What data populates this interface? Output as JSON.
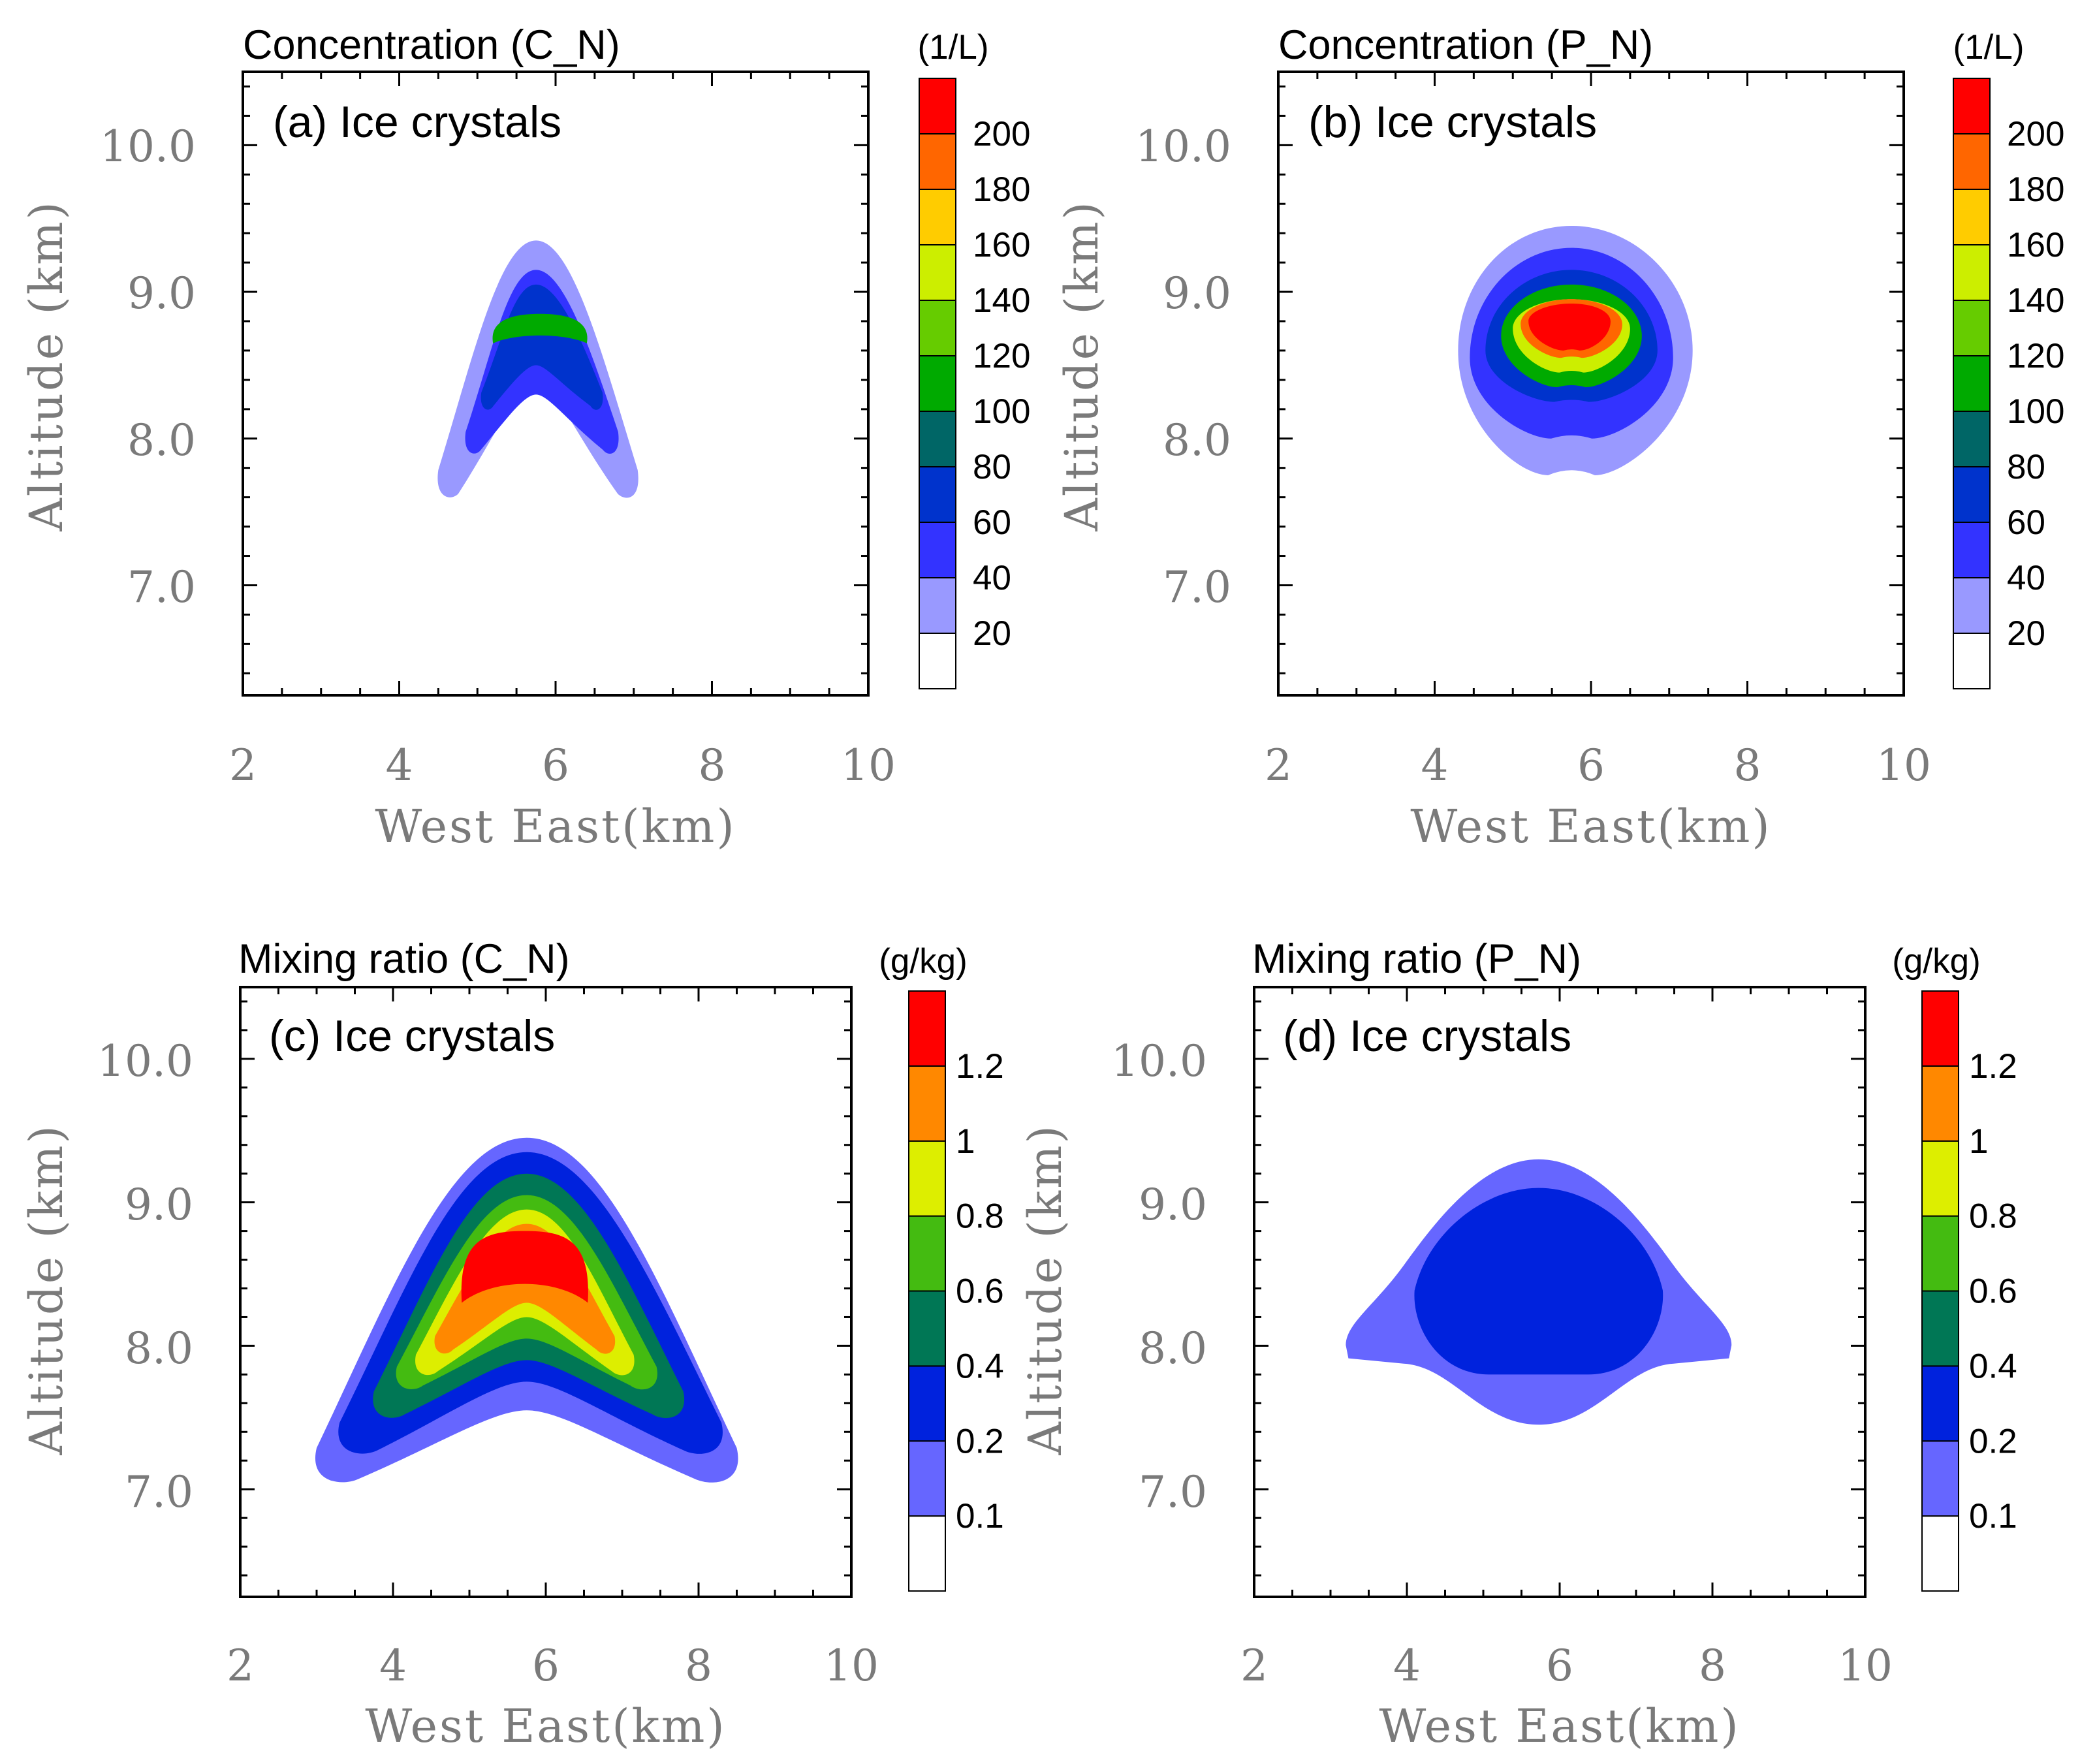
{
  "palettes": {
    "concentration": [
      "#ffffff",
      "#9999ff",
      "#3333ff",
      "#0033cc",
      "#006666",
      "#00aa00",
      "#66cc00",
      "#ccee00",
      "#ffcc00",
      "#ff6600",
      "#ff0000"
    ],
    "mixing": [
      "#ffffff",
      "#6666ff",
      "#0022dd",
      "#007755",
      "#44bb11",
      "#ddee00",
      "#ff8800",
      "#ff0000"
    ]
  },
  "chart_data": [
    {
      "type": "contour",
      "panel": "a",
      "title": "Concentration (C_N)",
      "panel_label": "(a) Ice crystals",
      "units_label": "(1/L)",
      "xlabel": "West East(km)",
      "ylabel": "Altitude (km)",
      "xlim": [
        2,
        10
      ],
      "ylim": [
        6.25,
        10.5
      ],
      "x_ticks": [
        "2",
        "4",
        "6",
        "8",
        "10"
      ],
      "y_ticks": [
        "7.0",
        "8.0",
        "9.0",
        "10.0"
      ],
      "colorbar_levels": [
        "20",
        "40",
        "60",
        "80",
        "100",
        "120",
        "140",
        "160",
        "180",
        "200"
      ],
      "contours": [
        {
          "level": 20,
          "peak": [
            5.75,
            9.35
          ],
          "left": [
            4.5,
            7.65
          ],
          "right": [
            7.05,
            7.65
          ],
          "valley": 8.4
        },
        {
          "level": 40,
          "peak": [
            5.75,
            9.15
          ],
          "left": [
            4.85,
            7.95
          ],
          "right": [
            6.8,
            7.95
          ],
          "valley": 8.3
        },
        {
          "level": 60,
          "peak": [
            5.75,
            9.05
          ],
          "left": [
            5.05,
            8.25
          ],
          "right": [
            6.6,
            8.25
          ],
          "valley": 8.5
        },
        {
          "level": 100,
          "box": [
            5.2,
            6.4,
            8.65,
            8.85
          ]
        }
      ]
    },
    {
      "type": "contour",
      "panel": "b",
      "title": "Concentration (P_N)",
      "panel_label": "(b) Ice crystals",
      "units_label": "(1/L)",
      "xlabel": "West East(km)",
      "ylabel": "Altitude (km)",
      "xlim": [
        2,
        10
      ],
      "ylim": [
        6.25,
        10.5
      ],
      "x_ticks": [
        "2",
        "4",
        "6",
        "8",
        "10"
      ],
      "y_ticks": [
        "7.0",
        "8.0",
        "9.0",
        "10.0"
      ],
      "colorbar_levels": [
        "20",
        "40",
        "60",
        "80",
        "100",
        "120",
        "140",
        "160",
        "180",
        "200"
      ],
      "contours": [
        {
          "level": 20,
          "center": [
            5.75,
            8.6
          ],
          "x_extent": [
            4.3,
            7.3
          ],
          "y_extent": [
            7.75,
            9.45
          ]
        },
        {
          "level": 40,
          "center": [
            5.75,
            8.55
          ],
          "x_extent": [
            4.45,
            7.05
          ],
          "y_extent": [
            8.0,
            9.3
          ]
        },
        {
          "level": 60,
          "center": [
            5.75,
            8.6
          ],
          "x_extent": [
            4.65,
            6.85
          ],
          "y_extent": [
            8.25,
            9.15
          ]
        },
        {
          "level": 100,
          "center": [
            5.75,
            8.7
          ],
          "x_extent": [
            4.85,
            6.65
          ],
          "y_extent": [
            8.35,
            9.05
          ]
        },
        {
          "level": 140,
          "center": [
            5.75,
            8.75
          ],
          "x_extent": [
            5.0,
            6.5
          ],
          "y_extent": [
            8.45,
            8.95
          ]
        },
        {
          "level": 180,
          "center": [
            5.75,
            8.78
          ],
          "x_extent": [
            5.1,
            6.4
          ],
          "y_extent": [
            8.55,
            8.95
          ]
        },
        {
          "level": 200,
          "center": [
            5.75,
            8.8
          ],
          "x_extent": [
            5.2,
            6.25
          ],
          "y_extent": [
            8.6,
            8.92
          ]
        }
      ]
    },
    {
      "type": "contour",
      "panel": "c",
      "title": "Mixing ratio (C_N)",
      "panel_label": "(c) Ice crystals",
      "units_label": "(g/kg)",
      "xlabel": "West East(km)",
      "ylabel": "Altitude (km)",
      "xlim": [
        2,
        10
      ],
      "ylim": [
        6.25,
        10.5
      ],
      "x_ticks": [
        "2",
        "4",
        "6",
        "8",
        "10"
      ],
      "y_ticks": [
        "7.0",
        "8.0",
        "9.0",
        "10.0"
      ],
      "colorbar_levels": [
        "0.1",
        "0.2",
        "0.4",
        "0.6",
        "0.8",
        "1",
        "1.2"
      ],
      "contours": [
        {
          "level": 0.1,
          "peak": [
            5.75,
            9.45
          ],
          "left": [
            3.0,
            7.1
          ],
          "right": [
            8.5,
            7.1
          ],
          "valley": 7.55
        },
        {
          "level": 0.2,
          "peak": [
            5.75,
            9.35
          ],
          "left": [
            3.3,
            7.3
          ],
          "right": [
            8.3,
            7.3
          ],
          "valley": 7.75
        },
        {
          "level": 0.4,
          "peak": [
            5.75,
            9.2
          ],
          "left": [
            3.75,
            7.55
          ],
          "right": [
            7.8,
            7.55
          ],
          "valley": 7.9
        },
        {
          "level": 0.6,
          "peak": [
            5.75,
            9.05
          ],
          "left": [
            4.05,
            7.75
          ],
          "right": [
            7.45,
            7.75
          ],
          "valley": 8.05
        },
        {
          "level": 0.8,
          "peak": [
            5.75,
            8.95
          ],
          "left": [
            4.3,
            7.85
          ],
          "right": [
            7.15,
            7.85
          ],
          "valley": 8.2
        },
        {
          "level": 1.0,
          "peak": [
            5.75,
            8.85
          ],
          "left": [
            4.55,
            8.0
          ],
          "right": [
            6.9,
            8.0
          ],
          "valley": 8.3
        },
        {
          "level": 1.2,
          "box": [
            4.9,
            6.55,
            8.3,
            8.8
          ]
        }
      ]
    },
    {
      "type": "contour",
      "panel": "d",
      "title": "Mixing ratio (P_N)",
      "panel_label": "(d) Ice crystals",
      "units_label": "(g/kg)",
      "xlabel": "West East(km)",
      "ylabel": "Altitude (km)",
      "xlim": [
        2,
        10
      ],
      "ylim": [
        6.25,
        10.5
      ],
      "x_ticks": [
        "2",
        "4",
        "6",
        "8",
        "10"
      ],
      "y_ticks": [
        "7.0",
        "8.0",
        "9.0",
        "10.0"
      ],
      "colorbar_levels": [
        "0.1",
        "0.2",
        "0.4",
        "0.6",
        "0.8",
        "1",
        "1.2"
      ],
      "contours": [
        {
          "level": 0.1,
          "x_extent": [
            3.2,
            8.25
          ],
          "y_extent": [
            7.45,
            9.3
          ]
        },
        {
          "level": 0.2,
          "x_extent": [
            4.1,
            7.35
          ],
          "y_extent": [
            7.8,
            9.1
          ]
        }
      ]
    }
  ]
}
